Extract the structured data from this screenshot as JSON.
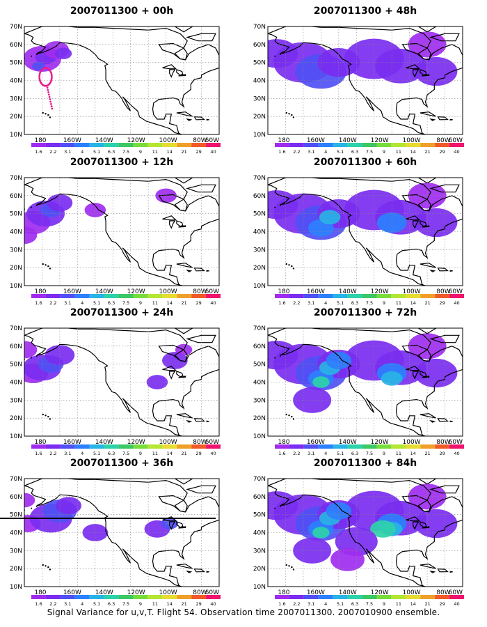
{
  "caption": "Signal Variance for u,v,T. Flight 54. Observation time 2007011300. 2007010900 ensemble.",
  "lat_labels": [
    "70N",
    "60N",
    "50N",
    "40N",
    "30N",
    "20N",
    "10N"
  ],
  "lon_labels": [
    "180",
    "160W",
    "140W",
    "120W",
    "100W",
    "80W",
    "60W"
  ],
  "colorbar": {
    "labels": [
      "1.6",
      "2.2",
      "3.1",
      "4",
      "5.1",
      "6.3",
      "7.5",
      "9",
      "11",
      "14",
      "21",
      "29",
      "40"
    ],
    "colors": [
      "#a02cf0",
      "#7a2cf0",
      "#5050f5",
      "#2c80ff",
      "#28b4e6",
      "#2cd2aa",
      "#3cc864",
      "#78dc3c",
      "#b4e632",
      "#e6dc32",
      "#f0a028",
      "#f05a28",
      "#f0146e"
    ]
  },
  "panels": [
    {
      "title": "2007011300 + 00h",
      "spread": 0
    },
    {
      "title": "2007011300 + 48h",
      "spread": 3
    },
    {
      "title": "2007011300 + 12h",
      "spread": 1
    },
    {
      "title": "2007011300 + 60h",
      "spread": 4
    },
    {
      "title": "2007011300 + 24h",
      "spread": 2
    },
    {
      "title": "2007011300 + 72h",
      "spread": 5
    },
    {
      "title": "2007011300 + 36h",
      "spread": 2.5
    },
    {
      "title": "2007011300 + 84h",
      "spread": 6
    }
  ]
}
